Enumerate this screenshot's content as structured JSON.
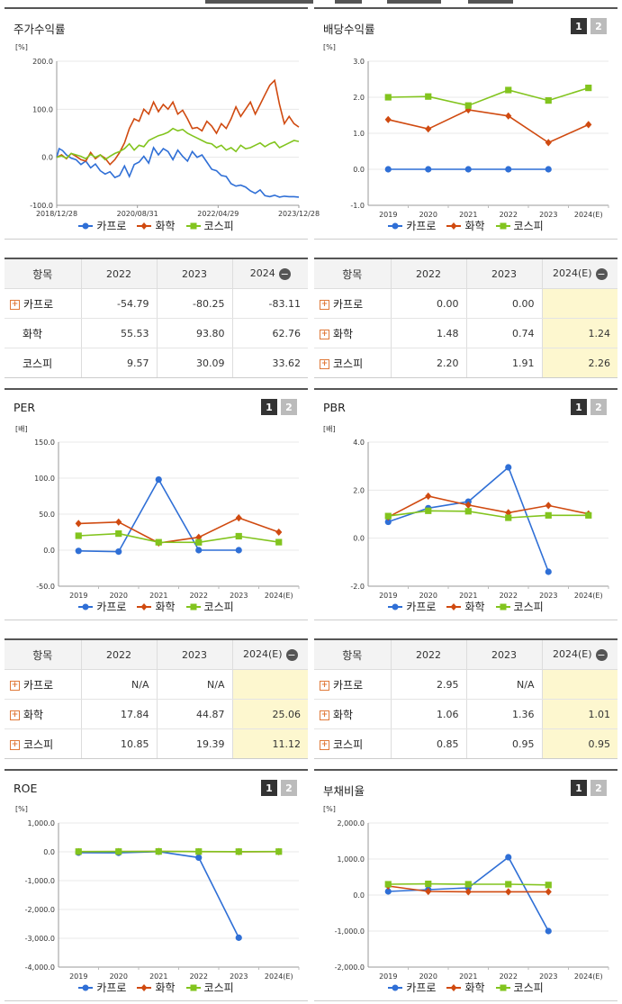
{
  "colors": {
    "kapro": "#2f6fd6",
    "chem": "#d04a10",
    "kospi": "#82c41e"
  },
  "legend": [
    "카프로",
    "화학",
    "코스피"
  ],
  "btn1": "1",
  "btn2": "2",
  "panels": {
    "stock": {
      "title": "주가수익률",
      "unit": "[%]"
    },
    "div": {
      "title": "배당수익률",
      "unit": "[%]"
    },
    "per": {
      "title": "PER",
      "unit": "[배]"
    },
    "pbr": {
      "title": "PBR",
      "unit": "[배]"
    },
    "roe": {
      "title": "ROE",
      "unit": "[%]"
    },
    "debt": {
      "title": "부채비율",
      "unit": "[%]"
    }
  },
  "chart_data": [
    {
      "id": "stock",
      "type": "line",
      "title": "주가수익률",
      "ylabel": "[%]",
      "ylim": [
        -100,
        200
      ],
      "yticks": [
        "200.0",
        "100.0",
        "0.0",
        "-100.0"
      ],
      "x_tick_labels": [
        "2018/12/28",
        "2020/08/31",
        "2022/04/29",
        "2023/12/28"
      ],
      "x_range": [
        0,
        5
      ],
      "series": [
        {
          "name": "카프로",
          "x": [
            0,
            0.05,
            0.12,
            0.2,
            0.3,
            0.4,
            0.5,
            0.6,
            0.7,
            0.8,
            0.9,
            1.0,
            1.1,
            1.2,
            1.3,
            1.4,
            1.5,
            1.6,
            1.7,
            1.8,
            1.9,
            2.0,
            2.1,
            2.2,
            2.3,
            2.4,
            2.5,
            2.6,
            2.7,
            2.8,
            2.9,
            3.0,
            3.1,
            3.2,
            3.3,
            3.4,
            3.5,
            3.6,
            3.7,
            3.8,
            3.9,
            4.0,
            4.1,
            4.2,
            4.3,
            4.4,
            4.5,
            4.6,
            4.7,
            4.8,
            4.9,
            5.0
          ],
          "y": [
            0,
            18,
            14,
            5,
            -2,
            -5,
            -15,
            -8,
            -22,
            -14,
            -28,
            -35,
            -30,
            -42,
            -38,
            -18,
            -40,
            -15,
            -10,
            2,
            -12,
            20,
            5,
            18,
            12,
            -5,
            15,
            2,
            -8,
            12,
            0,
            5,
            -10,
            -25,
            -28,
            -38,
            -40,
            -55,
            -60,
            -58,
            -62,
            -70,
            -75,
            -68,
            -80,
            -82,
            -79,
            -83,
            -81,
            -82,
            -82,
            -83
          ]
        },
        {
          "name": "화학",
          "x": [
            0,
            0.1,
            0.2,
            0.3,
            0.4,
            0.5,
            0.6,
            0.7,
            0.8,
            0.9,
            1.0,
            1.1,
            1.2,
            1.3,
            1.4,
            1.5,
            1.6,
            1.7,
            1.8,
            1.9,
            2.0,
            2.1,
            2.2,
            2.3,
            2.4,
            2.5,
            2.6,
            2.7,
            2.8,
            2.9,
            3.0,
            3.1,
            3.2,
            3.3,
            3.4,
            3.5,
            3.6,
            3.7,
            3.8,
            3.9,
            4.0,
            4.1,
            4.2,
            4.3,
            4.4,
            4.5,
            4.6,
            4.7,
            4.8,
            4.9,
            5.0
          ],
          "y": [
            0,
            5,
            -3,
            8,
            2,
            -5,
            -8,
            10,
            -3,
            5,
            -2,
            -15,
            -5,
            10,
            30,
            60,
            80,
            75,
            100,
            90,
            115,
            95,
            110,
            100,
            115,
            90,
            98,
            80,
            60,
            62,
            55,
            75,
            65,
            50,
            70,
            60,
            80,
            105,
            85,
            100,
            115,
            90,
            110,
            130,
            150,
            160,
            110,
            70,
            85,
            70,
            63
          ]
        },
        {
          "name": "코스피",
          "x": [
            0,
            0.1,
            0.2,
            0.3,
            0.4,
            0.5,
            0.6,
            0.7,
            0.8,
            0.9,
            1.0,
            1.1,
            1.2,
            1.3,
            1.4,
            1.5,
            1.6,
            1.7,
            1.8,
            1.9,
            2.0,
            2.1,
            2.2,
            2.3,
            2.4,
            2.5,
            2.6,
            2.7,
            2.8,
            2.9,
            3.0,
            3.1,
            3.2,
            3.3,
            3.4,
            3.5,
            3.6,
            3.7,
            3.8,
            3.9,
            4.0,
            4.1,
            4.2,
            4.3,
            4.4,
            4.5,
            4.6,
            4.7,
            4.8,
            4.9,
            5.0
          ],
          "y": [
            0,
            3,
            -2,
            8,
            5,
            2,
            -3,
            6,
            0,
            5,
            -5,
            2,
            8,
            12,
            18,
            28,
            15,
            25,
            22,
            35,
            40,
            45,
            48,
            52,
            60,
            55,
            58,
            50,
            45,
            40,
            35,
            30,
            28,
            20,
            25,
            15,
            20,
            12,
            25,
            18,
            20,
            25,
            30,
            22,
            28,
            32,
            20,
            25,
            30,
            35,
            33
          ]
        }
      ]
    },
    {
      "id": "div",
      "type": "line",
      "title": "배당수익률",
      "ylabel": "[%]",
      "ylim": [
        -1.0,
        3.0
      ],
      "yticks": [
        "3.0",
        "2.0",
        "1.0",
        "0.0",
        "-1.0"
      ],
      "categories": [
        "2019",
        "2020",
        "2021",
        "2022",
        "2023",
        "2024(E)"
      ],
      "series": [
        {
          "name": "카프로",
          "values": [
            0.0,
            0.0,
            0.0,
            0.0,
            0.0,
            null
          ]
        },
        {
          "name": "화학",
          "values": [
            1.38,
            1.12,
            1.65,
            1.48,
            0.74,
            1.24
          ]
        },
        {
          "name": "코스피",
          "values": [
            2.0,
            2.02,
            1.77,
            2.2,
            1.91,
            2.26
          ]
        }
      ]
    },
    {
      "id": "per",
      "type": "line",
      "title": "PER",
      "ylabel": "[배]",
      "ylim": [
        -50.0,
        150.0
      ],
      "yticks": [
        "150.0",
        "100.0",
        "50.0",
        "0.0",
        "-50.0"
      ],
      "categories": [
        "2019",
        "2020",
        "2021",
        "2022",
        "2023",
        "2024(E)"
      ],
      "series": [
        {
          "name": "카프로",
          "values": [
            -1.0,
            -2.0,
            98.0,
            0.0,
            0.0,
            null
          ]
        },
        {
          "name": "화학",
          "values": [
            37.0,
            39.0,
            10.0,
            17.84,
            44.87,
            25.06
          ]
        },
        {
          "name": "코스피",
          "values": [
            20.0,
            23.0,
            11.0,
            10.85,
            19.39,
            11.12
          ]
        }
      ]
    },
    {
      "id": "pbr",
      "type": "line",
      "title": "PBR",
      "ylabel": "[배]",
      "ylim": [
        -2.0,
        4.0
      ],
      "yticks": [
        "4.0",
        "2.0",
        "0.0",
        "-2.0"
      ],
      "categories": [
        "2019",
        "2020",
        "2021",
        "2022",
        "2023",
        "2024(E)"
      ],
      "series": [
        {
          "name": "카프로",
          "values": [
            0.68,
            1.25,
            1.52,
            2.95,
            -1.4,
            null
          ]
        },
        {
          "name": "화학",
          "values": [
            0.88,
            1.75,
            1.38,
            1.06,
            1.36,
            1.01
          ]
        },
        {
          "name": "코스피",
          "values": [
            0.92,
            1.14,
            1.12,
            0.85,
            0.95,
            0.95
          ]
        }
      ]
    },
    {
      "id": "roe",
      "type": "line",
      "title": "ROE",
      "ylabel": "[%]",
      "ylim": [
        -4000.0,
        1000.0
      ],
      "yticks": [
        "1,000.0",
        "0.0",
        "-1,000.0",
        "-2,000.0",
        "-3,000.0",
        "-4,000.0"
      ],
      "categories": [
        "2019",
        "2020",
        "2021",
        "2022",
        "2023",
        "2024(E)"
      ],
      "series": [
        {
          "name": "카프로",
          "values": [
            -30.0,
            -35.0,
            5.0,
            -200.0,
            -2980.0,
            null
          ]
        },
        {
          "name": "화학",
          "values": [
            5.0,
            8.0,
            15.0,
            6.0,
            3.0,
            5.0
          ]
        },
        {
          "name": "코스피",
          "values": [
            8.0,
            9.0,
            12.0,
            9.0,
            7.0,
            8.0
          ]
        }
      ]
    },
    {
      "id": "debt",
      "type": "line",
      "title": "부채비율",
      "ylabel": "[%]",
      "ylim": [
        -2000.0,
        2000.0
      ],
      "yticks": [
        "2,000.0",
        "1,000.0",
        "0.0",
        "-1,000.0",
        "-2,000.0"
      ],
      "categories": [
        "2019",
        "2020",
        "2021",
        "2022",
        "2023",
        "2024(E)"
      ],
      "series": [
        {
          "name": "카프로",
          "values": [
            100.0,
            150.0,
            200.0,
            1050.0,
            -1000.0,
            null
          ]
        },
        {
          "name": "화학",
          "values": [
            250.0,
            100.0,
            90.0,
            90.0,
            90.0,
            null
          ]
        },
        {
          "name": "코스피",
          "values": [
            300.0,
            310.0,
            300.0,
            300.0,
            280.0,
            null
          ]
        }
      ]
    }
  ],
  "tables": {
    "stock": {
      "headers": [
        "항목",
        "2022",
        "2023",
        "2024"
      ],
      "rows": [
        {
          "name": "카프로",
          "plus": true,
          "vals": [
            "-54.79",
            "-80.25",
            "-83.11"
          ]
        },
        {
          "name": "화학",
          "plus": false,
          "vals": [
            "55.53",
            "93.80",
            "62.76"
          ]
        },
        {
          "name": "코스피",
          "plus": false,
          "vals": [
            "9.57",
            "30.09",
            "33.62"
          ]
        }
      ]
    },
    "div": {
      "headers": [
        "항목",
        "2022",
        "2023",
        "2024(E)"
      ],
      "rows": [
        {
          "name": "카프로",
          "plus": true,
          "vals": [
            "0.00",
            "0.00",
            ""
          ]
        },
        {
          "name": "화학",
          "plus": true,
          "vals": [
            "1.48",
            "0.74",
            "1.24"
          ]
        },
        {
          "name": "코스피",
          "plus": true,
          "vals": [
            "2.20",
            "1.91",
            "2.26"
          ]
        }
      ]
    },
    "per": {
      "headers": [
        "항목",
        "2022",
        "2023",
        "2024(E)"
      ],
      "rows": [
        {
          "name": "카프로",
          "plus": true,
          "vals": [
            "N/A",
            "N/A",
            ""
          ]
        },
        {
          "name": "화학",
          "plus": true,
          "vals": [
            "17.84",
            "44.87",
            "25.06"
          ]
        },
        {
          "name": "코스피",
          "plus": true,
          "vals": [
            "10.85",
            "19.39",
            "11.12"
          ]
        }
      ]
    },
    "pbr": {
      "headers": [
        "항목",
        "2022",
        "2023",
        "2024(E)"
      ],
      "rows": [
        {
          "name": "카프로",
          "plus": true,
          "vals": [
            "2.95",
            "N/A",
            ""
          ]
        },
        {
          "name": "화학",
          "plus": true,
          "vals": [
            "1.06",
            "1.36",
            "1.01"
          ]
        },
        {
          "name": "코스피",
          "plus": true,
          "vals": [
            "0.85",
            "0.95",
            "0.95"
          ]
        }
      ]
    }
  }
}
